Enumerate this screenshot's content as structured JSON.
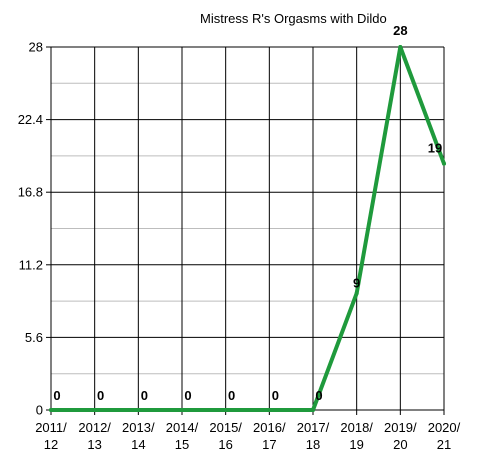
{
  "chart_data": {
    "type": "line",
    "title": "Mistress R's Orgasms with Dildo",
    "xlabel": "",
    "ylabel": "",
    "categories": [
      [
        "2011/",
        "12"
      ],
      [
        "2012/",
        "13"
      ],
      [
        "2013/",
        "14"
      ],
      [
        "2014/",
        "15"
      ],
      [
        "2015/",
        "16"
      ],
      [
        "2016/",
        "17"
      ],
      [
        "2017/",
        "18"
      ],
      [
        "2018/",
        "19"
      ],
      [
        "2019/",
        "20"
      ],
      [
        "2020/",
        "21"
      ]
    ],
    "series": [
      {
        "values": [
          0,
          0,
          0,
          0,
          0,
          0,
          0,
          9,
          28,
          19
        ]
      }
    ],
    "data_labels": [
      "0",
      "0",
      "0",
      "0",
      "0",
      "0",
      "0",
      "9",
      "28",
      "19"
    ],
    "y_ticks": [
      "0",
      "5.6",
      "11.2",
      "16.8",
      "22.4",
      "28"
    ],
    "ylim": [
      0,
      28
    ],
    "grid": true,
    "line_color": "#1f9a3c",
    "grid_color": "#000000",
    "minor_grid_color": "#bdbdbd"
  }
}
